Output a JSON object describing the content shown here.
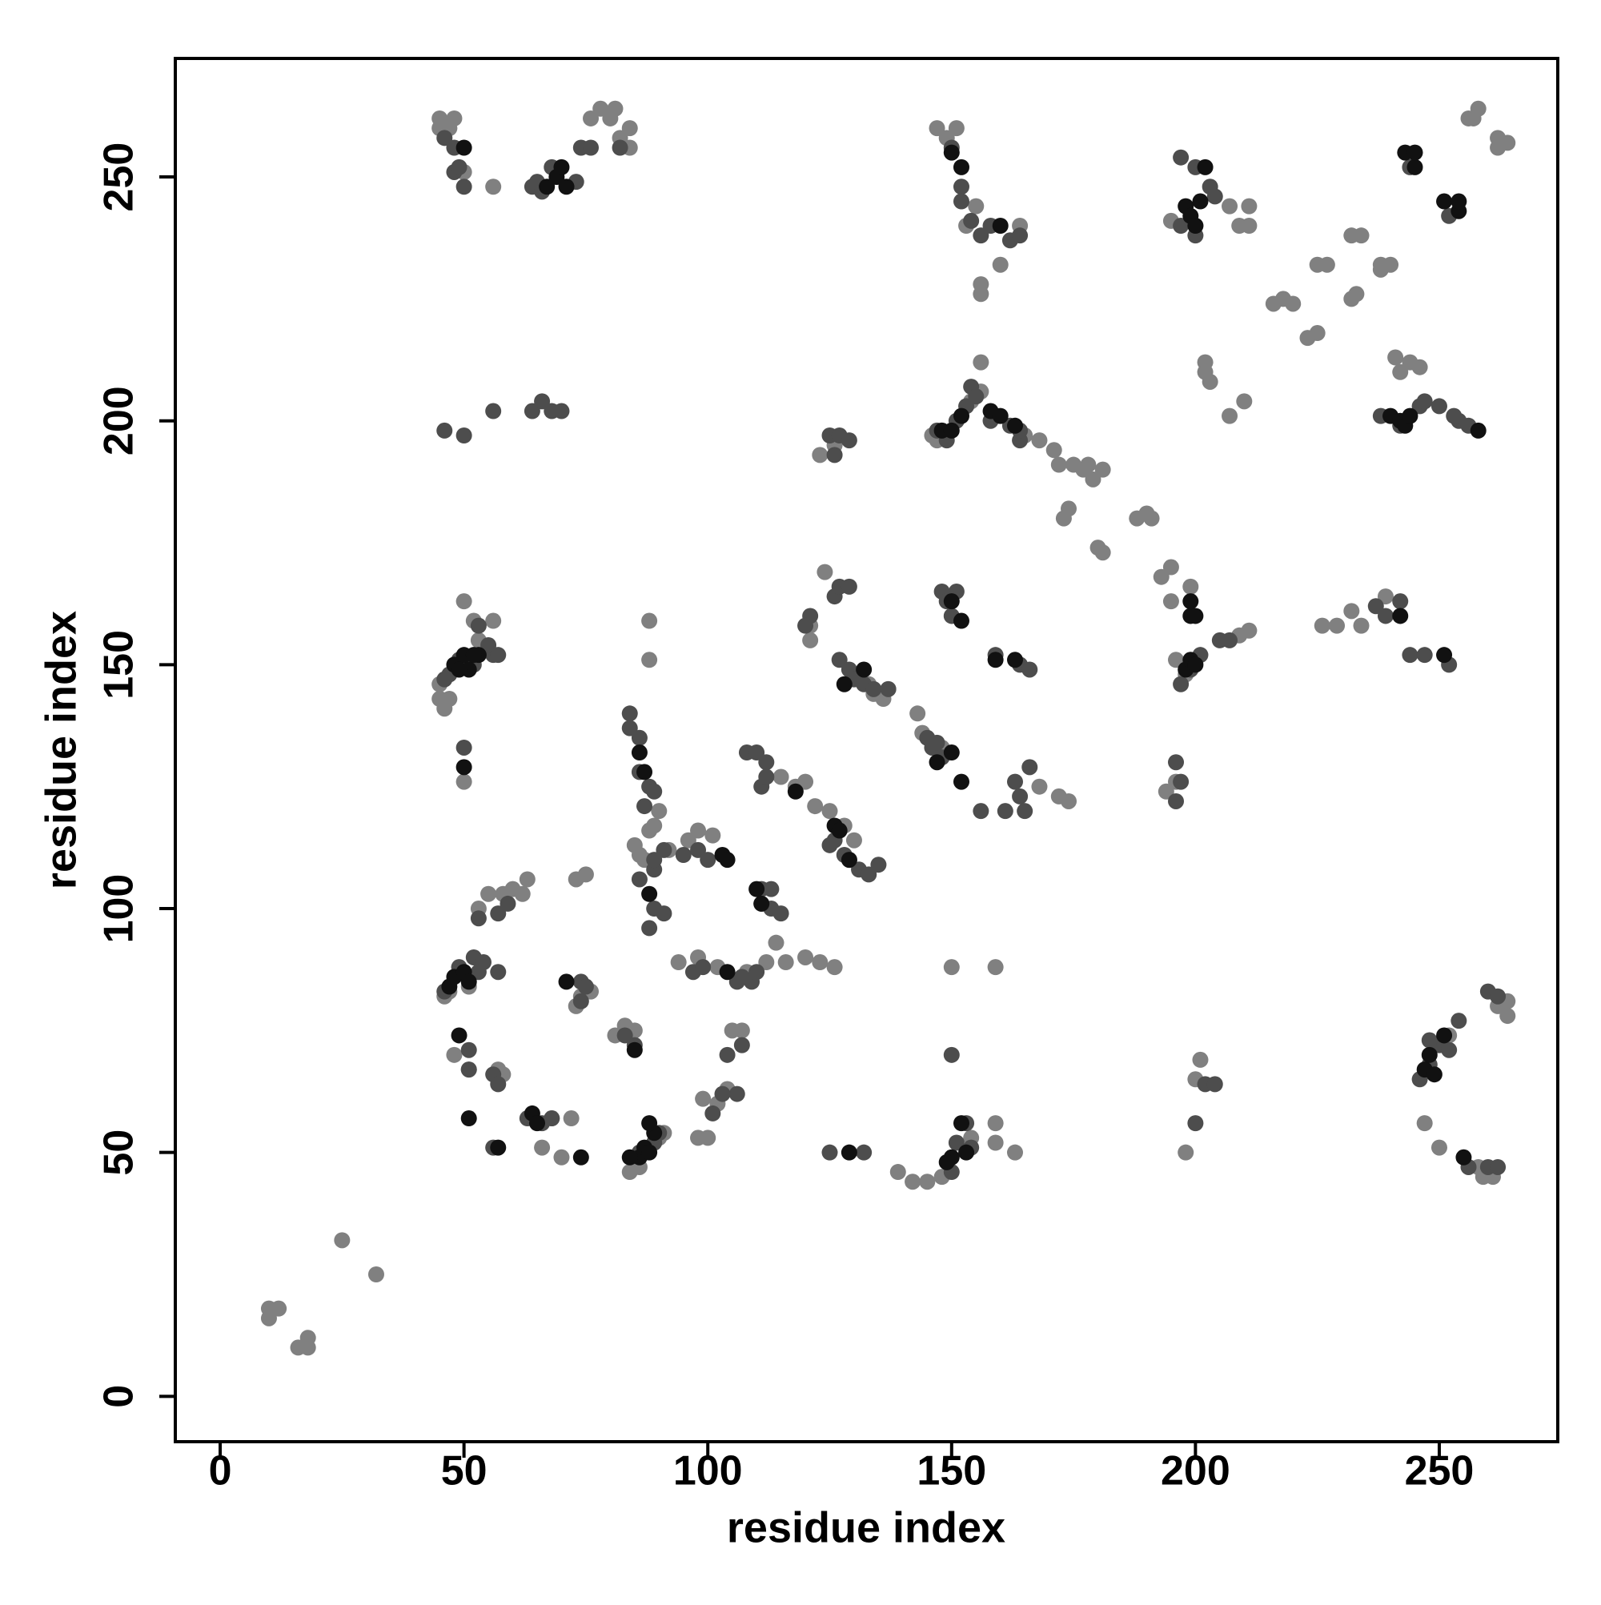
{
  "chart_data": {
    "type": "scatter",
    "xlabel": "residue index",
    "ylabel": "residue index",
    "xlim": [
      -9.2,
      274.3
    ],
    "ylim": [
      -9.3,
      274.3
    ],
    "xticks": [
      0,
      50,
      100,
      150,
      200,
      250
    ],
    "yticks": [
      0,
      50,
      100,
      150,
      200,
      250
    ],
    "series": [
      {
        "color": "#808080",
        "x": [
          10,
          10,
          12,
          16,
          18,
          18,
          25,
          32,
          45,
          47,
          45,
          48,
          80,
          82,
          84,
          84,
          78,
          81,
          76,
          56,
          50,
          216,
          218,
          220,
          223,
          225,
          225,
          227,
          232,
          233,
          232,
          234,
          238,
          209,
          211,
          207,
          211,
          257,
          258,
          256,
          262,
          264,
          262,
          173,
          174,
          180,
          181,
          179,
          181,
          177,
          188,
          190,
          191,
          195,
          156,
          156,
          154,
          155,
          156,
          156,
          160,
          153,
          164,
          147,
          149,
          151,
          45,
          46,
          47,
          45,
          50,
          56,
          52,
          53,
          88,
          88,
          90,
          89,
          88,
          92,
          96,
          98,
          101,
          94,
          98,
          102,
          108,
          112,
          114,
          116,
          120,
          123,
          126,
          115,
          118,
          120,
          122,
          125,
          128,
          130,
          121,
          121,
          124,
          144,
          148,
          143,
          136,
          134,
          137,
          133,
          150,
          159,
          159,
          159,
          163,
          139,
          142,
          145,
          148,
          154,
          194,
          196,
          198,
          201,
          200,
          198,
          196,
          195,
          199,
          193,
          209,
          211,
          226,
          229,
          234,
          232,
          239,
          241,
          244,
          242,
          246,
          240,
          238,
          202,
          202,
          203,
          210,
          207,
          195,
          200,
          247,
          250,
          252,
          262,
          264,
          264,
          258,
          261,
          259,
          100,
          98,
          99,
          102,
          104,
          105,
          107,
          81,
          83,
          85,
          73,
          74,
          76,
          75,
          73,
          55,
          58,
          60,
          62,
          63,
          53,
          51,
          47,
          46,
          50,
          48,
          51,
          57,
          58,
          70,
          66,
          68,
          72,
          84,
          86,
          90,
          91,
          85,
          87,
          86,
          174,
          172,
          168,
          148,
          147,
          146,
          165,
          168,
          171,
          172,
          175,
          178,
          123,
          126
        ],
        "y": [
          16,
          18,
          18,
          10,
          10,
          12,
          32,
          25,
          260,
          260,
          262,
          262,
          262,
          258,
          260,
          256,
          264,
          264,
          262,
          248,
          251,
          224,
          225,
          224,
          217,
          218,
          232,
          232,
          225,
          226,
          238,
          238,
          232,
          240,
          240,
          244,
          244,
          262,
          264,
          262,
          256,
          257,
          258,
          180,
          182,
          174,
          173,
          188,
          190,
          190,
          180,
          181,
          180,
          170,
          212,
          206,
          204,
          244,
          228,
          226,
          232,
          240,
          240,
          260,
          258,
          260,
          143,
          141,
          143,
          146,
          163,
          159,
          159,
          155,
          159,
          151,
          120,
          117,
          116,
          112,
          114,
          116,
          115,
          89,
          90,
          88,
          87,
          89,
          93,
          89,
          90,
          89,
          88,
          127,
          125,
          126,
          121,
          120,
          117,
          114,
          155,
          158,
          169,
          136,
          133,
          140,
          143,
          144,
          145,
          146,
          88,
          88,
          56,
          52,
          50,
          46,
          44,
          44,
          45,
          53,
          124,
          126,
          50,
          69,
          65,
          148,
          151,
          163,
          166,
          168,
          156,
          157,
          158,
          158,
          158,
          161,
          164,
          213,
          212,
          210,
          211,
          232,
          231,
          210,
          212,
          208,
          204,
          201,
          241,
          240,
          56,
          51,
          74,
          80,
          81,
          78,
          47,
          45,
          45,
          53,
          53,
          61,
          60,
          63,
          75,
          75,
          74,
          76,
          75,
          80,
          82,
          83,
          107,
          106,
          103,
          103,
          104,
          103,
          106,
          100,
          84,
          83,
          82,
          126,
          70,
          67,
          67,
          66,
          49,
          51,
          57,
          57,
          46,
          47,
          53,
          54,
          113,
          110,
          111,
          122,
          123,
          125,
          198,
          196,
          197,
          197,
          196,
          194,
          191,
          191,
          191,
          193,
          195
        ]
      },
      {
        "color": "#4d4d4d",
        "x": [
          46,
          48,
          50,
          48,
          49,
          64,
          65,
          66,
          68,
          73,
          74,
          76,
          82,
          46,
          50,
          56,
          64,
          66,
          68,
          70,
          47,
          46,
          49,
          52,
          53,
          56,
          55,
          57,
          50,
          84,
          84,
          86,
          86,
          88,
          89,
          87,
          86,
          89,
          88,
          91,
          89,
          89,
          91,
          95,
          98,
          100,
          108,
          110,
          112,
          111,
          112,
          97,
          99,
          106,
          107,
          109,
          110,
          111,
          113,
          115,
          111,
          113,
          125,
          126,
          128,
          129,
          131,
          133,
          135,
          127,
          129,
          130,
          132,
          134,
          137,
          126,
          127,
          129,
          121,
          120,
          125,
          127,
          129,
          126,
          145,
          146,
          147,
          148,
          164,
          165,
          166,
          163,
          161,
          156,
          150,
          151,
          148,
          149,
          159,
          164,
          166,
          147,
          149,
          151,
          153,
          154,
          155,
          158,
          162,
          164,
          164,
          150,
          152,
          152,
          154,
          156,
          158,
          162,
          164,
          197,
          200,
          203,
          204,
          200,
          197,
          197,
          199,
          201,
          205,
          207,
          196,
          197,
          196,
          237,
          239,
          242,
          244,
          247,
          252,
          254,
          256,
          253,
          238,
          242,
          246,
          247,
          250,
          246,
          248,
          250,
          252,
          254,
          248,
          260,
          262,
          244,
          252,
          256,
          260,
          262,
          150,
          153,
          151,
          150,
          154,
          125,
          132,
          51,
          51,
          56,
          57,
          57,
          56,
          52,
          54,
          53,
          49,
          46,
          57,
          59,
          53,
          63,
          66,
          68,
          74,
          75,
          74,
          83,
          85,
          86,
          89,
          90,
          104,
          107,
          106,
          103,
          101,
          202,
          204,
          200
        ],
        "y": [
          258,
          256,
          248,
          251,
          252,
          248,
          249,
          247,
          252,
          249,
          256,
          256,
          256,
          198,
          197,
          202,
          202,
          204,
          202,
          202,
          148,
          147,
          151,
          150,
          158,
          152,
          154,
          152,
          133,
          140,
          137,
          135,
          128,
          125,
          124,
          121,
          106,
          100,
          96,
          99,
          108,
          110,
          112,
          111,
          112,
          110,
          132,
          132,
          130,
          125,
          127,
          87,
          88,
          85,
          86,
          85,
          87,
          101,
          100,
          99,
          104,
          104,
          113,
          114,
          111,
          110,
          108,
          107,
          109,
          151,
          149,
          147,
          146,
          145,
          145,
          164,
          166,
          166,
          160,
          158,
          197,
          197,
          196,
          193,
          135,
          133,
          134,
          131,
          123,
          120,
          129,
          126,
          120,
          120,
          160,
          165,
          165,
          163,
          152,
          150,
          149,
          198,
          196,
          200,
          203,
          207,
          205,
          200,
          199,
          196,
          198,
          256,
          248,
          245,
          241,
          238,
          240,
          237,
          238,
          254,
          252,
          248,
          246,
          238,
          240,
          146,
          149,
          152,
          155,
          155,
          130,
          126,
          122,
          162,
          160,
          163,
          152,
          152,
          150,
          200,
          199,
          201,
          201,
          199,
          203,
          204,
          203,
          65,
          68,
          72,
          71,
          77,
          73,
          83,
          82,
          252,
          242,
          47,
          47,
          47,
          70,
          56,
          52,
          46,
          51,
          50,
          50,
          71,
          67,
          66,
          64,
          87,
          51,
          90,
          89,
          87,
          88,
          83,
          99,
          101,
          98,
          57,
          56,
          57,
          85,
          84,
          81,
          74,
          72,
          50,
          52,
          54,
          70,
          72,
          62,
          62,
          58,
          64,
          64,
          56
        ]
      },
      {
        "color": "#111111",
        "x": [
          50,
          67,
          69,
          70,
          71,
          48,
          50,
          51,
          53,
          50,
          86,
          87,
          88,
          103,
          104,
          110,
          111,
          104,
          118,
          126,
          127,
          129,
          128,
          132,
          150,
          152,
          159,
          163,
          147,
          150,
          152,
          150,
          152,
          160,
          148,
          150,
          152,
          158,
          160,
          163,
          198,
          199,
          201,
          202,
          200,
          199,
          200,
          199,
          198,
          199,
          200,
          242,
          243,
          245,
          245,
          251,
          254,
          254,
          240,
          242,
          243,
          244,
          251,
          258,
          247,
          248,
          251,
          249,
          255,
          152,
          150,
          149,
          153,
          129,
          86,
          87,
          88,
          89,
          84,
          88,
          85,
          47,
          48,
          50,
          51,
          49,
          51,
          57,
          64,
          65,
          74,
          71,
          52,
          49
        ],
        "y": [
          256,
          248,
          250,
          252,
          248,
          150,
          152,
          149,
          152,
          129,
          132,
          128,
          103,
          111,
          110,
          104,
          101,
          87,
          124,
          117,
          116,
          110,
          146,
          149,
          163,
          159,
          151,
          151,
          130,
          132,
          126,
          255,
          252,
          240,
          198,
          198,
          201,
          202,
          201,
          199,
          244,
          242,
          245,
          252,
          240,
          160,
          160,
          163,
          149,
          151,
          150,
          160,
          255,
          252,
          255,
          245,
          243,
          245,
          201,
          200,
          199,
          201,
          152,
          198,
          67,
          70,
          74,
          66,
          49,
          56,
          49,
          48,
          50,
          50,
          49,
          51,
          50,
          54,
          49,
          56,
          71,
          84,
          86,
          87,
          85,
          74,
          57,
          51,
          58,
          56,
          49,
          85,
          152,
          149
        ]
      }
    ]
  }
}
